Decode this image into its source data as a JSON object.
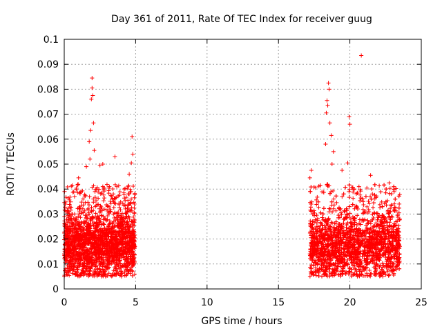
{
  "chart_data": {
    "type": "scatter",
    "title": "Day 361 of 2011, Rate Of TEC Index for receiver guug",
    "xlabel": "GPS time / hours",
    "ylabel": "ROTI / TECUs",
    "xlim": [
      0,
      25
    ],
    "ylim": [
      0,
      0.1
    ],
    "xticks": [
      "0",
      "5",
      "10",
      "15",
      "20",
      "25"
    ],
    "yticks": [
      "0",
      "0.01",
      "0.02",
      "0.03",
      "0.04",
      "0.05",
      "0.06",
      "0.07",
      "0.08",
      "0.09",
      "0.1"
    ],
    "grid": true,
    "marker": "plus",
    "color": "#ff0000",
    "series": [
      {
        "name": "ROTI",
        "segments": [
          {
            "x_range": [
              0.0,
              4.95
            ],
            "typical_range": [
              0.005,
              0.03
            ]
          },
          {
            "x_range": [
              17.2,
              23.5
            ],
            "typical_range": [
              0.005,
              0.03
            ]
          }
        ],
        "points": [
          {
            "x": 1.95,
            "y": 0.0845
          },
          {
            "x": 1.95,
            "y": 0.0805
          },
          {
            "x": 2.0,
            "y": 0.0775
          },
          {
            "x": 1.9,
            "y": 0.076
          },
          {
            "x": 2.05,
            "y": 0.0665
          },
          {
            "x": 1.85,
            "y": 0.0635
          },
          {
            "x": 1.75,
            "y": 0.059
          },
          {
            "x": 2.1,
            "y": 0.0555
          },
          {
            "x": 1.8,
            "y": 0.052
          },
          {
            "x": 1.55,
            "y": 0.049
          },
          {
            "x": 2.5,
            "y": 0.0495
          },
          {
            "x": 2.7,
            "y": 0.05
          },
          {
            "x": 3.55,
            "y": 0.053
          },
          {
            "x": 4.75,
            "y": 0.061
          },
          {
            "x": 4.8,
            "y": 0.054
          },
          {
            "x": 4.7,
            "y": 0.0505
          },
          {
            "x": 1.0,
            "y": 0.0445
          },
          {
            "x": 4.55,
            "y": 0.046
          },
          {
            "x": 20.8,
            "y": 0.0935
          },
          {
            "x": 18.5,
            "y": 0.0825
          },
          {
            "x": 18.55,
            "y": 0.08
          },
          {
            "x": 18.4,
            "y": 0.0755
          },
          {
            "x": 18.45,
            "y": 0.0735
          },
          {
            "x": 18.35,
            "y": 0.0705
          },
          {
            "x": 18.6,
            "y": 0.0665
          },
          {
            "x": 18.7,
            "y": 0.0615
          },
          {
            "x": 19.95,
            "y": 0.069
          },
          {
            "x": 20.0,
            "y": 0.066
          },
          {
            "x": 18.3,
            "y": 0.058
          },
          {
            "x": 18.85,
            "y": 0.055
          },
          {
            "x": 18.75,
            "y": 0.05
          },
          {
            "x": 17.3,
            "y": 0.0475
          },
          {
            "x": 17.2,
            "y": 0.0445
          },
          {
            "x": 19.45,
            "y": 0.0475
          },
          {
            "x": 19.85,
            "y": 0.0505
          },
          {
            "x": 21.45,
            "y": 0.0455
          },
          {
            "x": 17.6,
            "y": 0.0405
          },
          {
            "x": 22.75,
            "y": 0.0425
          },
          {
            "x": 23.1,
            "y": 0.039
          }
        ]
      }
    ]
  }
}
